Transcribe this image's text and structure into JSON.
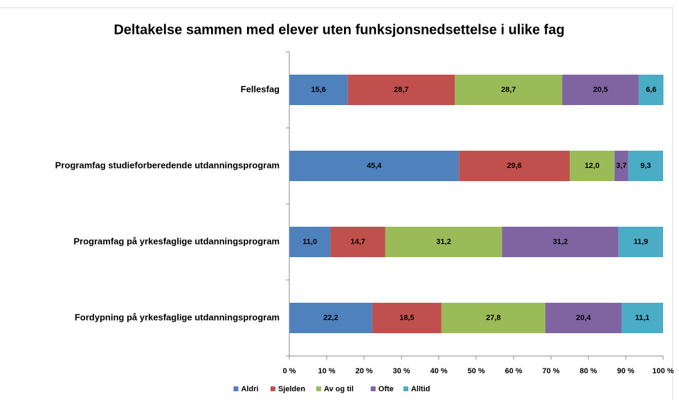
{
  "chart_data": {
    "type": "stacked-barh",
    "title": "Deltakelse sammen med elever uten funksjonsnedsettelse i ulike fag",
    "categories": [
      "Fellesfag",
      "Programfag studieforberedende utdanningsprogram",
      "Programfag på yrkesfaglige utdanningsprogram",
      "Fordypning på yrkesfaglige utdanningsprogram"
    ],
    "series": [
      {
        "name": "Aldri",
        "color": "#4f81bd",
        "values": [
          15.6,
          45.4,
          11.0,
          22.2
        ],
        "value_labels": [
          "15,6",
          "45,4",
          "11,0",
          "22,2"
        ]
      },
      {
        "name": "Sjelden",
        "color": "#c0504d",
        "values": [
          28.7,
          29.6,
          14.7,
          18.5
        ],
        "value_labels": [
          "28,7",
          "29,6",
          "14,7",
          "18,5"
        ]
      },
      {
        "name": "Av og til",
        "color": "#9bbb59",
        "values": [
          28.7,
          12.0,
          31.2,
          27.8
        ],
        "value_labels": [
          "28,7",
          "12,0",
          "31,2",
          "27,8"
        ]
      },
      {
        "name": "Ofte",
        "color": "#8064a2",
        "values": [
          20.5,
          3.7,
          31.2,
          20.4
        ],
        "value_labels": [
          "20,5",
          "3,7",
          "31,2",
          "20,4"
        ]
      },
      {
        "name": "Alltid",
        "color": "#4bacc6",
        "values": [
          6.6,
          9.3,
          11.9,
          11.1
        ],
        "value_labels": [
          "6,6",
          "9,3",
          "11,9",
          "11,1"
        ]
      }
    ],
    "xlim": [
      0,
      100
    ],
    "xticks": [
      {
        "value": 0,
        "label": "0 %"
      },
      {
        "value": 10,
        "label": "10 %"
      },
      {
        "value": 20,
        "label": "20 %"
      },
      {
        "value": 30,
        "label": "30 %"
      },
      {
        "value": 40,
        "label": "40 %"
      },
      {
        "value": 50,
        "label": "50 %"
      },
      {
        "value": 60,
        "label": "60 %"
      },
      {
        "value": 70,
        "label": "70 %"
      },
      {
        "value": 80,
        "label": "80 %"
      },
      {
        "value": 90,
        "label": "90 %"
      },
      {
        "value": 100,
        "label": "100 %"
      }
    ],
    "legend": "bottom"
  }
}
